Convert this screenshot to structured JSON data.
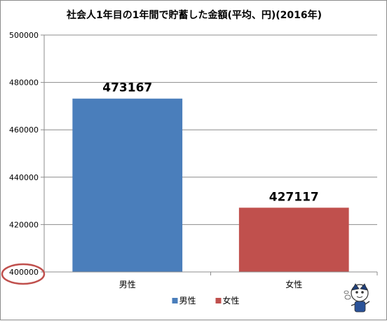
{
  "chart_data": {
    "type": "bar",
    "title": "社会人1年目の1年間で貯蓄した金額(平均、円)(2016年)",
    "categories": [
      "男性",
      "女性"
    ],
    "series": [
      {
        "name": "男性",
        "values": [
          473167,
          null
        ],
        "color": "#4a7ebb"
      },
      {
        "name": "女性",
        "values": [
          null,
          427117
        ],
        "color": "#c0504d"
      }
    ],
    "data_labels": [
      "473167",
      "427117"
    ],
    "ylim": [
      400000,
      500000
    ],
    "yticks": [
      "400000",
      "420000",
      "440000",
      "460000",
      "480000",
      "500000"
    ],
    "grid": true,
    "legend_position": "bottom",
    "annotation": {
      "kind": "circle",
      "target_tick": "400000",
      "color": "#c0504d"
    }
  }
}
